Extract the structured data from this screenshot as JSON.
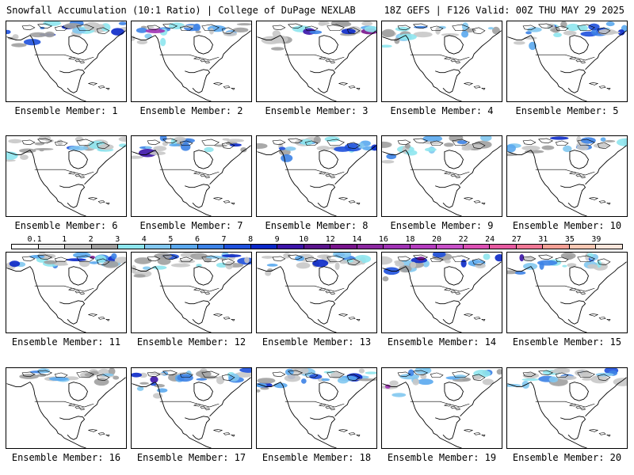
{
  "header": {
    "left": "Snowfall Accumulation (10:1 Ratio) | College of DuPage NEXLAB",
    "right": "18Z GEFS | F126 Valid: 00Z THU MAY 29 2025"
  },
  "legend": {
    "labels": [
      "0.1",
      "1",
      "2",
      "3",
      "4",
      "5",
      "6",
      "7",
      "8",
      "9",
      "10",
      "12",
      "14",
      "16",
      "18",
      "20",
      "22",
      "24",
      "27",
      "31",
      "35",
      "39"
    ],
    "colors": [
      "#ffffff",
      "#e8e8e8",
      "#c8c8c8",
      "#a0a0a0",
      "#8ee6ee",
      "#82c8f0",
      "#5aa8ee",
      "#3c82e6",
      "#1e50dc",
      "#0a28c8",
      "#3c14a8",
      "#5a148c",
      "#78148c",
      "#8c28a0",
      "#a032b4",
      "#b43cbe",
      "#c850c8",
      "#dc50b4",
      "#e65aa0",
      "#f07896",
      "#f5a096",
      "#fac8b4",
      "#fde6dc"
    ]
  },
  "panels": [
    {
      "member": 1,
      "label": "Ensemble Member: 1"
    },
    {
      "member": 2,
      "label": "Ensemble Member: 2"
    },
    {
      "member": 3,
      "label": "Ensemble Member: 3"
    },
    {
      "member": 4,
      "label": "Ensemble Member: 4"
    },
    {
      "member": 5,
      "label": "Ensemble Member: 5"
    },
    {
      "member": 6,
      "label": "Ensemble Member: 6"
    },
    {
      "member": 7,
      "label": "Ensemble Member: 7"
    },
    {
      "member": 8,
      "label": "Ensemble Member: 8"
    },
    {
      "member": 9,
      "label": "Ensemble Member: 9"
    },
    {
      "member": 10,
      "label": "Ensemble Member: 10"
    },
    {
      "member": 11,
      "label": "Ensemble Member: 11"
    },
    {
      "member": 12,
      "label": "Ensemble Member: 12"
    },
    {
      "member": 13,
      "label": "Ensemble Member: 13"
    },
    {
      "member": 14,
      "label": "Ensemble Member: 14"
    },
    {
      "member": 15,
      "label": "Ensemble Member: 15"
    },
    {
      "member": 16,
      "label": "Ensemble Member: 16"
    },
    {
      "member": 17,
      "label": "Ensemble Member: 17"
    },
    {
      "member": 18,
      "label": "Ensemble Member: 18"
    },
    {
      "member": 19,
      "label": "Ensemble Member: 19"
    },
    {
      "member": 20,
      "label": "Ensemble Member: 20"
    }
  ]
}
